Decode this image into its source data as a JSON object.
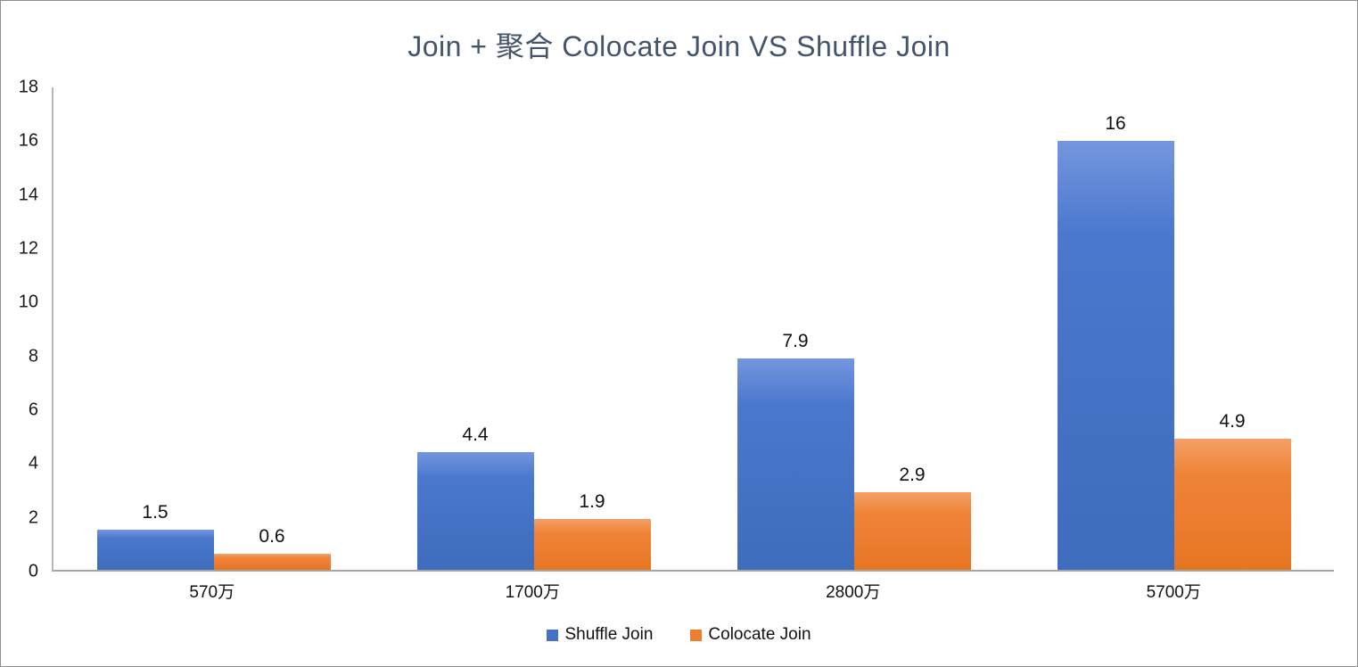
{
  "chart_data": {
    "type": "bar",
    "title": "Join + 聚合 Colocate Join VS Shuffle Join",
    "categories": [
      "570万",
      "1700万",
      "2800万",
      "5700万"
    ],
    "series": [
      {
        "name": "Shuffle Join",
        "color": "#4472C4",
        "values": [
          1.5,
          4.4,
          7.9,
          16
        ],
        "labels": [
          "1.5",
          "4.4",
          "7.9",
          "16"
        ]
      },
      {
        "name": "Colocate Join",
        "color": "#ED7D31",
        "values": [
          0.6,
          1.9,
          2.9,
          4.9
        ],
        "labels": [
          "0.6",
          "1.9",
          "2.9",
          "4.9"
        ]
      }
    ],
    "xlabel": "",
    "ylabel": "",
    "ylim": [
      0,
      18
    ],
    "ytick_step": 2,
    "grid": false,
    "legend_position": "bottom",
    "title_color": "#44546A"
  }
}
